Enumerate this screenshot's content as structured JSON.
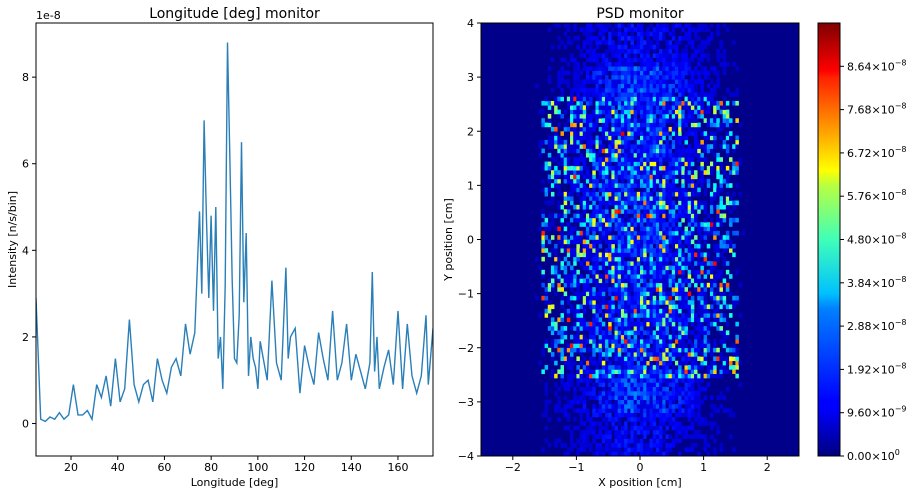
{
  "chart_data": [
    {
      "type": "line",
      "title": "Longitude [deg] monitor",
      "xlabel": "Longitude [deg]",
      "ylabel": "Intensity [n/s/bin]",
      "offset_text": "1e-8",
      "xlim": [
        5,
        175
      ],
      "ylim": [
        -0.75,
        9.25
      ],
      "y_scale_factor": 1e-08,
      "xticks": [
        20,
        40,
        60,
        80,
        100,
        120,
        140,
        160
      ],
      "xtick_labels": [
        "20",
        "40",
        "60",
        "80",
        "100",
        "120",
        "140",
        "160"
      ],
      "yticks": [
        0,
        2,
        4,
        6,
        8
      ],
      "ytick_labels": [
        "0",
        "2",
        "4",
        "6",
        "8"
      ],
      "line_color": "#2a7fb8",
      "grid": false,
      "legend": "none",
      "x": [
        5,
        7,
        9,
        11,
        13,
        15,
        17,
        19,
        21,
        23,
        25,
        27,
        29,
        31,
        33,
        35,
        37,
        39,
        41,
        43,
        45,
        47,
        49,
        51,
        53,
        55,
        57,
        59,
        61,
        63,
        65,
        67,
        69,
        71,
        73,
        75,
        76,
        77,
        78,
        79,
        80,
        81,
        82,
        83,
        84,
        85,
        86,
        87,
        88,
        89,
        90,
        91,
        92,
        93,
        94,
        95,
        96,
        97,
        98,
        99,
        100,
        101,
        102,
        104,
        106,
        108,
        110,
        112,
        113,
        114,
        116,
        118,
        120,
        122,
        124,
        126,
        128,
        130,
        132,
        134,
        136,
        138,
        140,
        142,
        144,
        146,
        148,
        149,
        150,
        151,
        152,
        154,
        156,
        158,
        160,
        162,
        164,
        166,
        168,
        170,
        172,
        173,
        175
      ],
      "y": [
        2.9,
        0.1,
        0.05,
        0.15,
        0.1,
        0.25,
        0.1,
        0.2,
        0.9,
        0.2,
        0.2,
        0.3,
        0.1,
        0.9,
        0.6,
        1.1,
        0.4,
        1.5,
        0.5,
        0.8,
        2.4,
        0.9,
        0.5,
        0.9,
        1.0,
        0.5,
        1.5,
        1.0,
        0.7,
        1.3,
        1.5,
        1.1,
        2.3,
        1.6,
        2.1,
        4.9,
        3.0,
        7.0,
        4.7,
        2.9,
        4.8,
        2.6,
        5.0,
        1.5,
        2.0,
        0.8,
        3.2,
        8.8,
        6.2,
        3.3,
        1.5,
        1.4,
        2.5,
        6.5,
        2.8,
        4.4,
        1.1,
        2.0,
        1.5,
        1.3,
        0.8,
        1.9,
        1.6,
        1.0,
        3.3,
        1.4,
        1.0,
        3.6,
        1.5,
        2.0,
        2.2,
        0.7,
        1.8,
        1.3,
        0.9,
        2.1,
        1.5,
        1.0,
        2.6,
        1.0,
        1.4,
        2.3,
        1.0,
        1.6,
        1.2,
        0.8,
        1.4,
        3.5,
        1.2,
        2.0,
        0.8,
        1.3,
        1.7,
        0.9,
        2.6,
        0.8,
        2.3,
        1.1,
        0.7,
        1.1,
        2.5,
        0.9,
        2.2
      ]
    },
    {
      "type": "heatmap",
      "title": "PSD monitor",
      "xlabel": "X position [cm]",
      "ylabel": "Y position [cm]",
      "xlim": [
        -2.5,
        2.5
      ],
      "ylim": [
        -4,
        4
      ],
      "xticks": [
        -2,
        -1,
        0,
        1,
        2
      ],
      "xtick_labels": [
        "−2",
        "−1",
        "0",
        "1",
        "2"
      ],
      "yticks": [
        -4,
        -3,
        -2,
        -1,
        0,
        1,
        2,
        3,
        4
      ],
      "ytick_labels": [
        "−4",
        "−3",
        "−2",
        "−1",
        "0",
        "1",
        "2",
        "3",
        "4"
      ],
      "colormap": "jet",
      "colorbar_range": [
        0,
        9.6e-08
      ],
      "colorbar_ticks": [
        0,
        9.6e-09,
        1.92e-08,
        2.88e-08,
        3.84e-08,
        4.8e-08,
        5.76e-08,
        6.72e-08,
        7.68e-08,
        8.64e-08
      ],
      "colorbar_labels": [
        {
          "mantissa": "0.00",
          "exponent": "0"
        },
        {
          "mantissa": "9.60",
          "exponent": "−9"
        },
        {
          "mantissa": "1.92",
          "exponent": "−8"
        },
        {
          "mantissa": "2.88",
          "exponent": "−8"
        },
        {
          "mantissa": "3.84",
          "exponent": "−8"
        },
        {
          "mantissa": "4.80",
          "exponent": "−8"
        },
        {
          "mantissa": "5.76",
          "exponent": "−8"
        },
        {
          "mantissa": "6.72",
          "exponent": "−8"
        },
        {
          "mantissa": "7.68",
          "exponent": "−8"
        },
        {
          "mantissa": "8.64",
          "exponent": "−8"
        }
      ],
      "grid": false
    }
  ]
}
